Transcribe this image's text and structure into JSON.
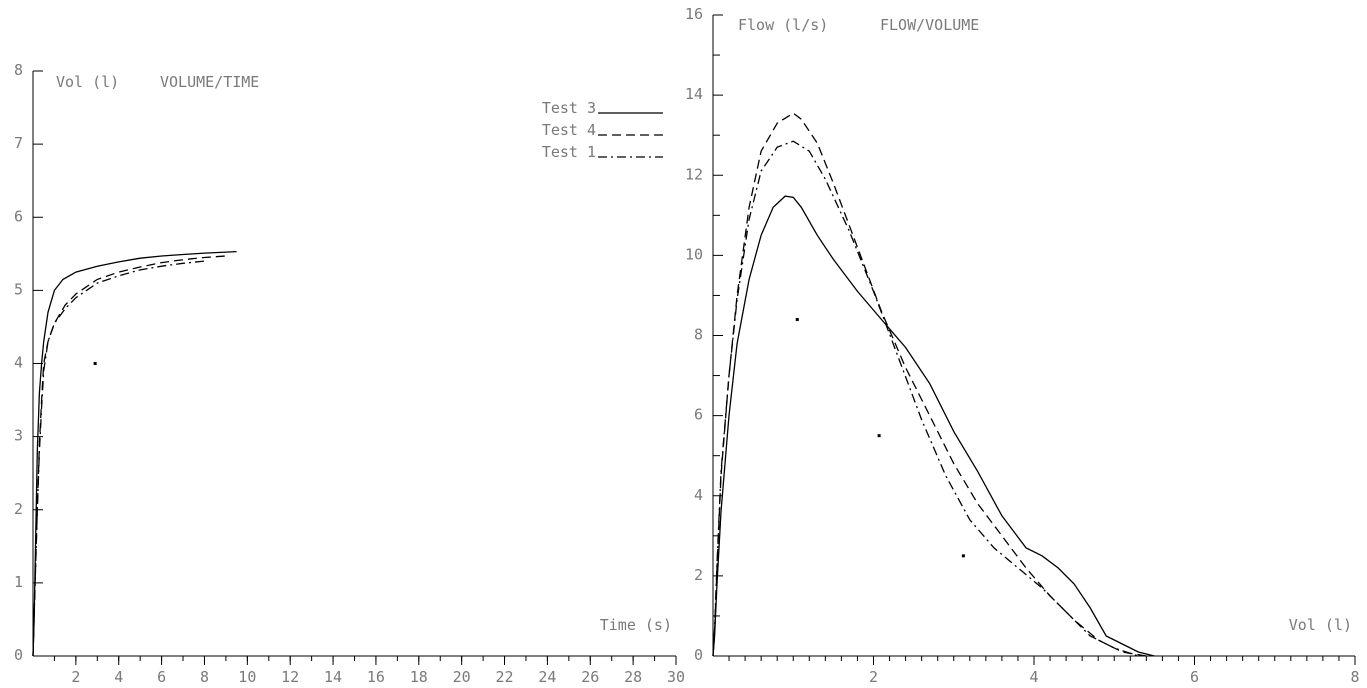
{
  "chart_data": [
    {
      "type": "line",
      "title": "VOLUME/TIME",
      "ylabel": "Vol (l)",
      "xlabel": "Time (s)",
      "xlim": [
        0,
        30
      ],
      "ylim": [
        0,
        8
      ],
      "x_ticks": [
        2,
        4,
        6,
        8,
        10,
        12,
        14,
        16,
        18,
        20,
        22,
        24,
        26,
        28,
        30
      ],
      "y_ticks": [
        0,
        1,
        2,
        3,
        4,
        5,
        6,
        7,
        8
      ],
      "grid": false,
      "legend_position": "top-right",
      "series": [
        {
          "name": "Test 3",
          "style": "solid",
          "x": [
            0,
            0.05,
            0.1,
            0.15,
            0.2,
            0.3,
            0.4,
            0.5,
            0.7,
            1.0,
            1.4,
            2.0,
            3.0,
            4.0,
            5.0,
            6.0,
            7.0,
            8.0,
            9.5
          ],
          "y": [
            0,
            0.5,
            1.2,
            2.0,
            2.8,
            3.6,
            4.0,
            4.3,
            4.7,
            5.0,
            5.15,
            5.25,
            5.33,
            5.39,
            5.44,
            5.47,
            5.49,
            5.51,
            5.53
          ]
        },
        {
          "name": "Test 4",
          "style": "dashed",
          "x": [
            0,
            0.1,
            0.2,
            0.3,
            0.4,
            0.5,
            0.7,
            1.0,
            1.5,
            2.0,
            3.0,
            4.0,
            5.0,
            6.0,
            7.0,
            8.0,
            9.0
          ],
          "y": [
            0,
            1.0,
            2.0,
            2.9,
            3.5,
            4.0,
            4.3,
            4.55,
            4.8,
            4.95,
            5.15,
            5.25,
            5.32,
            5.38,
            5.42,
            5.45,
            5.47
          ]
        },
        {
          "name": "Test 1",
          "style": "dashdot",
          "x": [
            0,
            0.1,
            0.2,
            0.3,
            0.4,
            0.5,
            0.7,
            1.0,
            1.5,
            2.0,
            3.0,
            4.0,
            5.0,
            6.0,
            7.0,
            8.0
          ],
          "y": [
            0,
            1.0,
            2.0,
            2.8,
            3.4,
            3.9,
            4.3,
            4.55,
            4.75,
            4.9,
            5.1,
            5.2,
            5.28,
            5.33,
            5.37,
            5.4
          ]
        }
      ],
      "points": [
        {
          "x": 2.9,
          "y": 4.0
        }
      ]
    },
    {
      "type": "line",
      "title": "FLOW/VOLUME",
      "ylabel": "Flow (l/s)",
      "xlabel": "Vol (l)",
      "xlim": [
        0,
        8
      ],
      "ylim": [
        0,
        16
      ],
      "x_ticks": [
        2,
        4,
        6,
        8
      ],
      "y_ticks": [
        0,
        2,
        4,
        6,
        8,
        10,
        12,
        14,
        16
      ],
      "grid": false,
      "series": [
        {
          "name": "Test 3",
          "style": "solid",
          "x": [
            0,
            0.02,
            0.05,
            0.1,
            0.2,
            0.3,
            0.45,
            0.6,
            0.75,
            0.9,
            1.0,
            1.1,
            1.3,
            1.5,
            1.8,
            2.1,
            2.4,
            2.7,
            3.0,
            3.3,
            3.6,
            3.9,
            4.1,
            4.3,
            4.5,
            4.7,
            4.9,
            5.1,
            5.3,
            5.5
          ],
          "y": [
            0,
            0.5,
            1.8,
            3.6,
            6.0,
            7.8,
            9.4,
            10.5,
            11.2,
            11.48,
            11.45,
            11.2,
            10.5,
            9.9,
            9.1,
            8.4,
            7.7,
            6.8,
            5.6,
            4.6,
            3.5,
            2.7,
            2.5,
            2.2,
            1.8,
            1.2,
            0.5,
            0.3,
            0.1,
            0
          ]
        },
        {
          "name": "Test 4",
          "style": "dashed",
          "x": [
            0,
            0.02,
            0.05,
            0.1,
            0.2,
            0.3,
            0.45,
            0.6,
            0.8,
            1.0,
            1.1,
            1.3,
            1.5,
            1.8,
            2.1,
            2.4,
            2.7,
            3.0,
            3.3,
            3.6,
            3.9,
            4.2,
            4.5,
            4.8,
            5.1,
            5.4
          ],
          "y": [
            0,
            0.6,
            2.2,
            4.5,
            7.0,
            9.0,
            11.2,
            12.6,
            13.3,
            13.55,
            13.4,
            12.8,
            11.8,
            10.2,
            8.6,
            7.2,
            6.0,
            4.8,
            3.8,
            3.0,
            2.2,
            1.5,
            0.9,
            0.4,
            0.1,
            0
          ]
        },
        {
          "name": "Test 1",
          "style": "dashdot",
          "x": [
            0,
            0.02,
            0.05,
            0.1,
            0.2,
            0.3,
            0.45,
            0.6,
            0.8,
            1.0,
            1.2,
            1.4,
            1.7,
            2.0,
            2.3,
            2.6,
            2.9,
            3.2,
            3.5,
            3.8,
            4.1,
            4.4,
            4.7,
            5.0,
            5.3
          ],
          "y": [
            0,
            0.7,
            2.3,
            4.6,
            7.0,
            8.9,
            10.9,
            12.1,
            12.7,
            12.85,
            12.6,
            11.9,
            10.6,
            9.1,
            7.5,
            5.9,
            4.5,
            3.4,
            2.7,
            2.2,
            1.7,
            1.1,
            0.5,
            0.2,
            0
          ]
        }
      ],
      "points": [
        {
          "x": 1.05,
          "y": 8.4
        },
        {
          "x": 2.07,
          "y": 5.5
        },
        {
          "x": 3.12,
          "y": 2.5
        }
      ]
    }
  ],
  "legend_items": [
    {
      "label": "Test 3",
      "style": "solid"
    },
    {
      "label": "Test 4",
      "style": "dashed"
    },
    {
      "label": "Test 1",
      "style": "dashdot"
    }
  ],
  "colors": {
    "axis": "#000000",
    "text": "#7a7a7a",
    "line": "#000000",
    "background": "#ffffff"
  }
}
